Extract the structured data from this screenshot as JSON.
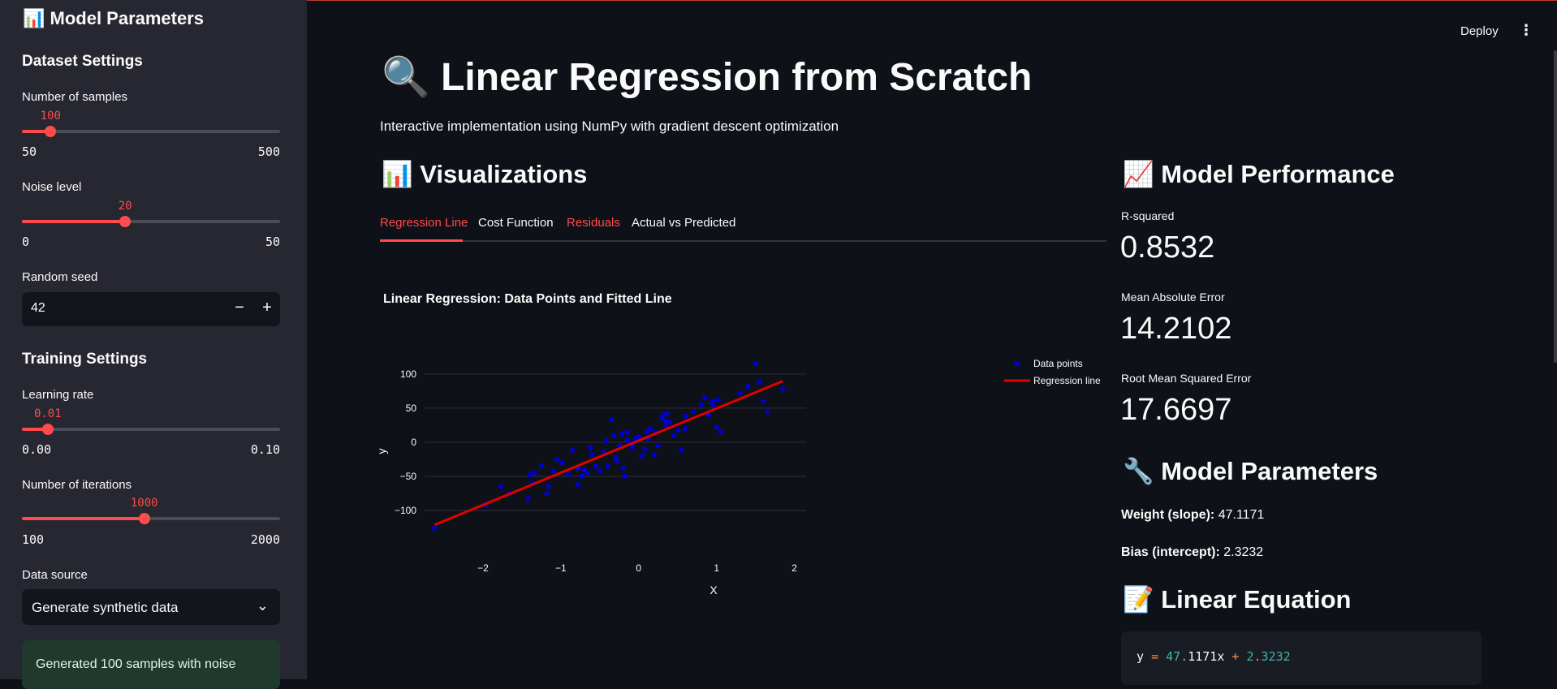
{
  "sidebar": {
    "title": "📊 Model Parameters",
    "dataset_header": "Dataset Settings",
    "samples": {
      "label": "Number of samples",
      "value": "100",
      "min": "50",
      "max": "500",
      "fraction": 0.111
    },
    "noise": {
      "label": "Noise level",
      "value": "20",
      "min": "0",
      "max": "50",
      "fraction": 0.4
    },
    "seed": {
      "label": "Random seed",
      "value": "42",
      "minus": "−",
      "plus": "+"
    },
    "training_header": "Training Settings",
    "learning_rate": {
      "label": "Learning rate",
      "value": "0.01",
      "min": "0.00",
      "max": "0.10",
      "fraction": 0.1
    },
    "iterations": {
      "label": "Number of iterations",
      "value": "1000",
      "min": "100",
      "max": "2000",
      "fraction": 0.474
    },
    "data_source": {
      "label": "Data source",
      "value": "Generate synthetic data"
    },
    "success_message": "Generated 100 samples with noise"
  },
  "header": {
    "deploy": "Deploy",
    "menu": "⋮"
  },
  "main": {
    "title": "🔍 Linear Regression from Scratch",
    "subtitle": "Interactive implementation using NumPy with gradient descent optimization",
    "visualizations_header": "📊 Visualizations",
    "tabs": [
      {
        "label": "Regression Line",
        "color": "#ff4b4b"
      },
      {
        "label": "Cost Function",
        "color": "#fafafa"
      },
      {
        "label": "Residuals",
        "color": "#ff4b4b"
      },
      {
        "label": "Actual vs Predicted",
        "color": "#fafafa"
      }
    ],
    "chart_title": "Linear Regression: Data Points and Fitted Line"
  },
  "performance": {
    "header": "📈 Model Performance",
    "metrics": [
      {
        "label": "R-squared",
        "value": "0.8532"
      },
      {
        "label": "Mean Absolute Error",
        "value": "14.2102"
      },
      {
        "label": "Root Mean Squared Error",
        "value": "17.6697"
      }
    ],
    "params_header": "🔧 Model Parameters",
    "weight_label": "Weight (slope):",
    "weight_value": "47.1171",
    "bias_label": "Bias (intercept):",
    "bias_value": "2.3232",
    "equation_header": "📝 Linear Equation",
    "equation": {
      "y": "y",
      "eq": "=",
      "w_int": "47",
      "w_dot": ".",
      "w_frac": "1171x",
      "plus": "+",
      "b_int": "2",
      "b_dot": ".",
      "b_frac": "3232"
    }
  },
  "chart_data": {
    "type": "scatter",
    "xlabel": "X",
    "ylabel": "y",
    "xlim": [
      -2.75,
      2.15
    ],
    "ylim": [
      -125,
      120
    ],
    "x_ticks": [
      -2,
      -1,
      0,
      1,
      2
    ],
    "y_ticks": [
      -100,
      -50,
      0,
      50,
      100
    ],
    "tick_labels_x": [
      "−2",
      "−1",
      "0",
      "1",
      "2"
    ],
    "tick_labels_y": [
      "−100",
      "−50",
      "0",
      "50",
      "100"
    ],
    "legend_position": "top-right",
    "series": [
      {
        "name": "Data points",
        "kind": "scatter",
        "color": "#0000cc",
        "x": [
          -2.62,
          -1.97,
          -1.77,
          -1.66,
          -1.42,
          -1.37,
          -1.34,
          -1.25,
          -1.18,
          -1.16,
          -1.1,
          -1.05,
          -0.98,
          -0.9,
          -0.85,
          -0.78,
          -0.73,
          -0.7,
          -0.66,
          -0.6,
          -0.55,
          -0.5,
          -0.45,
          -0.4,
          -0.35,
          -0.32,
          -0.28,
          -0.25,
          -0.22,
          -0.18,
          -0.15,
          -0.1,
          -0.05,
          0.0,
          0.04,
          0.08,
          0.1,
          0.15,
          0.2,
          0.22,
          0.25,
          0.3,
          0.32,
          0.35,
          0.36,
          0.4,
          0.5,
          0.55,
          0.6,
          0.7,
          0.8,
          0.85,
          0.9,
          0.95,
          1.0,
          1.05,
          1.4,
          1.5,
          1.55,
          1.6,
          1.65,
          1.85,
          -0.78,
          -0.62,
          -0.15,
          0.6,
          1.02,
          -0.3,
          0.35,
          -1.4,
          -0.2,
          0.12,
          -0.42,
          0.95,
          0.45,
          -0.08,
          1.3
        ],
        "y": [
          -126,
          -92,
          -65,
          -75,
          -83,
          -60,
          -45,
          -35,
          -75,
          -65,
          -42,
          -25,
          -30,
          -47,
          -12,
          -62,
          -50,
          -40,
          -45,
          -18,
          -35,
          -42,
          -15,
          -35,
          33,
          10,
          -28,
          -5,
          12,
          -50,
          3,
          -2,
          5,
          8,
          -20,
          -10,
          15,
          20,
          -18,
          15,
          -5,
          35,
          40,
          25,
          42,
          30,
          18,
          -12,
          20,
          45,
          55,
          65,
          40,
          60,
          22,
          15,
          82,
          115,
          88,
          60,
          45,
          78,
          -38,
          -8,
          15,
          38,
          62,
          -22,
          30,
          -48,
          -38,
          5,
          2,
          55,
          10,
          -8,
          72
        ]
      },
      {
        "name": "Regression line",
        "kind": "line",
        "color": "#e00000",
        "x": [
          -2.62,
          1.85
        ],
        "y": [
          -121.12,
          89.49
        ]
      }
    ]
  }
}
